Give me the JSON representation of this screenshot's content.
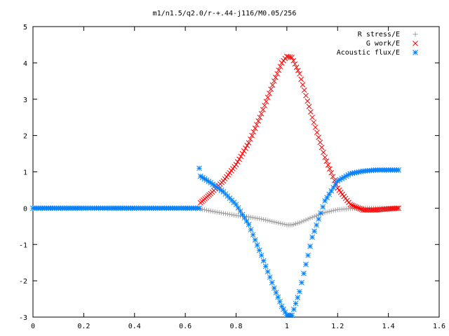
{
  "chart_data": {
    "type": "scatter",
    "title": "m1/n1.5/q2.0/r-+.44-j116/M0.05/256",
    "xlabel": "",
    "ylabel": "",
    "xlim": [
      0,
      1.6
    ],
    "ylim": [
      -3,
      5
    ],
    "x_ticks": [
      "0",
      "0.2",
      "0.4",
      "0.6",
      "0.8",
      "1",
      "1.2",
      "1.4",
      "1.6"
    ],
    "y_ticks": [
      "5",
      "4",
      "3",
      "2",
      "1",
      "0",
      "-1",
      "-2",
      "-3"
    ],
    "grid": false,
    "legend_position": "top-right",
    "series": [
      {
        "name": "R stress/E",
        "color": "#a0a0a0",
        "marker": "plus",
        "x": [
          0.66,
          0.7,
          0.75,
          0.8,
          0.85,
          0.9,
          0.95,
          1.0,
          1.02,
          1.05,
          1.1,
          1.15,
          1.2,
          1.25,
          1.3,
          1.35,
          1.4,
          1.44
        ],
        "y": [
          -0.02,
          -0.08,
          -0.14,
          -0.2,
          -0.24,
          -0.3,
          -0.38,
          -0.46,
          -0.46,
          -0.4,
          -0.25,
          -0.12,
          -0.04,
          -0.01,
          0.0,
          0.0,
          0.0,
          0.0
        ]
      },
      {
        "name": "G work/E",
        "color": "#ff0000",
        "marker": "cross",
        "x": [
          0.66,
          0.7,
          0.75,
          0.8,
          0.85,
          0.9,
          0.95,
          0.98,
          1.0,
          1.02,
          1.05,
          1.1,
          1.15,
          1.2,
          1.25,
          1.3,
          1.35,
          1.4,
          1.44
        ],
        "y": [
          0.15,
          0.4,
          0.75,
          1.2,
          1.8,
          2.6,
          3.5,
          4.0,
          4.18,
          4.15,
          3.7,
          2.5,
          1.4,
          0.55,
          0.1,
          -0.05,
          -0.05,
          -0.02,
          0.0
        ]
      },
      {
        "name": "Acoustic flux/E",
        "color": "#0080ff",
        "marker": "star",
        "x": [
          0.0,
          0.1,
          0.2,
          0.3,
          0.4,
          0.5,
          0.6,
          0.655,
          0.655,
          0.66,
          0.7,
          0.75,
          0.8,
          0.85,
          0.9,
          0.95,
          0.98,
          1.0,
          1.02,
          1.05,
          1.1,
          1.15,
          1.2,
          1.25,
          1.3,
          1.35,
          1.4,
          1.44
        ],
        "y": [
          0.0,
          0.0,
          0.0,
          0.0,
          0.0,
          0.0,
          0.0,
          0.0,
          1.1,
          0.88,
          0.7,
          0.45,
          0.1,
          -0.45,
          -1.3,
          -2.2,
          -2.7,
          -2.95,
          -2.95,
          -2.3,
          -0.8,
          0.2,
          0.75,
          0.95,
          1.02,
          1.05,
          1.05,
          1.05
        ]
      }
    ]
  }
}
